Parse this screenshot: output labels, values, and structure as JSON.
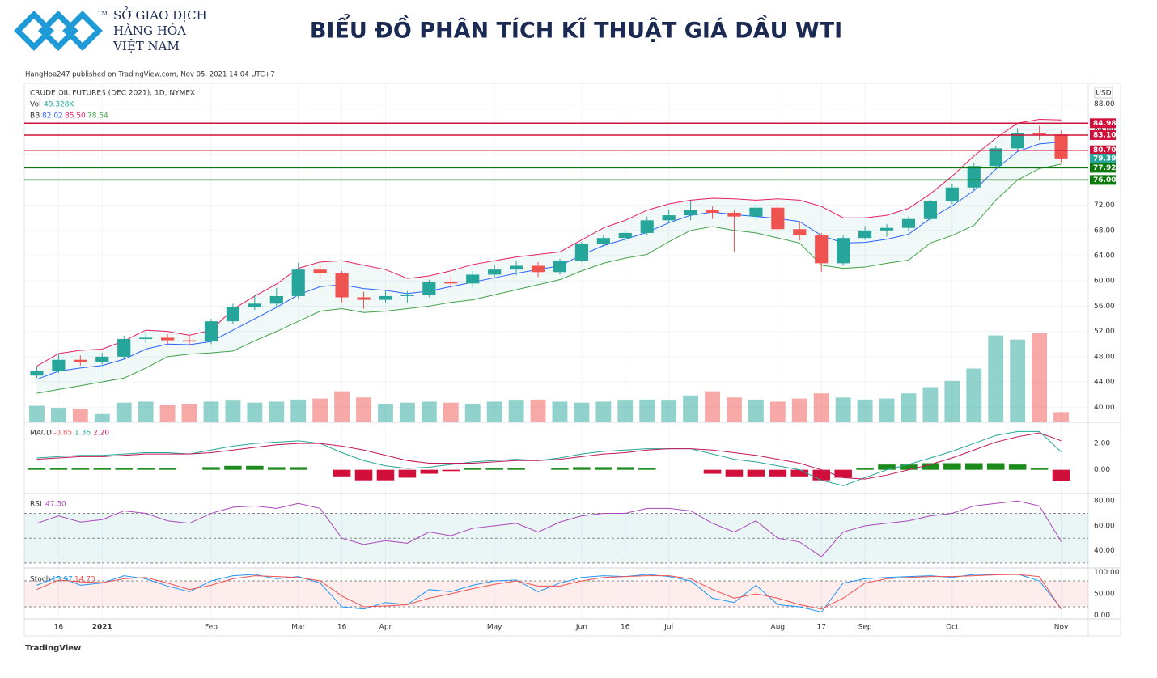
{
  "header": {
    "logo_lines": [
      "SỞ GIAO DỊCH",
      "HÀNG HÓA",
      "VIỆT NAM"
    ],
    "logo_mark": "TM",
    "title": "BIỂU ĐỒ PHÂN TÍCH KĨ THUẬT GIÁ DẦU WTI"
  },
  "attribution": "HangHoa247 published on TradingView.com, Nov 05, 2021 14:04 UTC+7",
  "footer": "TradingView",
  "chart_data": {
    "type": "candlestick",
    "title": "CRUDE OIL FUTURES (DEC 2021), 1D, NYMEX",
    "currency": "USD",
    "categories": [
      null,
      "16",
      null,
      "2021",
      null,
      null,
      null,
      null,
      "Feb",
      null,
      null,
      null,
      "Mar",
      null,
      "16",
      null,
      "Apr",
      null,
      null,
      null,
      null,
      "May",
      null,
      null,
      null,
      "Jun",
      null,
      "16",
      null,
      "Jul",
      null,
      null,
      null,
      null,
      "Aug",
      null,
      "17",
      null,
      "Sep",
      null,
      null,
      null,
      "Oct",
      null,
      null,
      null,
      null,
      "Nov"
    ],
    "open": [
      45.0,
      45.8,
      47.5,
      47.2,
      48.0,
      50.8,
      51.0,
      50.6,
      50.4,
      53.6,
      55.8,
      56.4,
      57.6,
      61.8,
      61.2,
      57.4,
      57.0,
      57.6,
      57.8,
      59.8,
      59.6,
      61.0,
      61.8,
      62.4,
      61.4,
      63.2,
      65.8,
      66.8,
      67.6,
      69.6,
      70.4,
      71.2,
      70.8,
      70.2,
      71.6,
      68.2,
      67.2,
      62.8,
      66.8,
      68.0,
      68.4,
      69.8,
      72.6,
      74.8,
      78.2,
      81.0,
      83.4,
      83.2
    ],
    "high": [
      46.3,
      48.4,
      48.2,
      48.6,
      51.3,
      51.8,
      51.6,
      51.3,
      54.0,
      56.4,
      57.8,
      58.9,
      62.9,
      62.5,
      61.6,
      58.3,
      58.4,
      58.4,
      60.2,
      60.7,
      61.6,
      62.6,
      63.2,
      63.0,
      63.5,
      66.2,
      67.2,
      68.0,
      70.2,
      71.3,
      72.6,
      71.8,
      71.3,
      72.3,
      71.9,
      69.5,
      67.6,
      67.2,
      68.7,
      69.0,
      70.2,
      72.9,
      75.4,
      78.7,
      81.4,
      84.2,
      84.6,
      83.8
    ],
    "low": [
      44.6,
      45.4,
      46.6,
      46.8,
      47.6,
      50.2,
      50.0,
      49.7,
      50.0,
      53.2,
      55.4,
      55.8,
      57.2,
      60.3,
      56.6,
      55.6,
      56.5,
      56.6,
      57.4,
      58.8,
      59.0,
      60.6,
      60.9,
      60.6,
      61.0,
      63.0,
      65.4,
      66.3,
      67.2,
      69.2,
      69.6,
      69.8,
      64.6,
      69.6,
      67.8,
      66.4,
      61.4,
      62.4,
      66.5,
      67.0,
      68.0,
      69.5,
      72.2,
      74.3,
      77.9,
      80.6,
      82.3,
      78.8
    ],
    "close": [
      45.8,
      47.5,
      47.2,
      48.0,
      50.8,
      51.0,
      50.6,
      50.4,
      53.6,
      55.8,
      56.4,
      57.6,
      61.8,
      61.2,
      57.4,
      57.0,
      57.6,
      57.8,
      59.8,
      59.6,
      61.0,
      61.8,
      62.4,
      61.4,
      63.2,
      65.8,
      66.8,
      67.6,
      69.6,
      70.4,
      71.2,
      70.8,
      70.2,
      71.6,
      68.2,
      67.2,
      62.8,
      66.8,
      68.0,
      68.4,
      69.8,
      72.6,
      74.8,
      78.2,
      81.0,
      83.4,
      83.2,
      79.4
    ],
    "up_color": "#26a69a",
    "down_color": "#ef5350",
    "ylim": [
      37.6,
      91.3
    ],
    "yticks": [
      {
        "value": 88,
        "label": "88.00"
      },
      {
        "value": 84,
        "label": "84.00"
      },
      {
        "value": 80,
        "label": "80.00"
      },
      {
        "value": 76,
        "label": "76.00"
      },
      {
        "value": 72,
        "label": "72.00"
      },
      {
        "value": 68,
        "label": "68.00"
      },
      {
        "value": 64,
        "label": "64.00"
      },
      {
        "value": 60,
        "label": "60.00"
      },
      {
        "value": 56,
        "label": "56.00"
      },
      {
        "value": 52,
        "label": "52.00"
      },
      {
        "value": 48,
        "label": "48.00"
      },
      {
        "value": 44,
        "label": "44.00"
      },
      {
        "value": 40,
        "label": "40.00"
      }
    ],
    "grid": true,
    "last_price": {
      "value": 79.39,
      "label": "79.39",
      "color": "#26a69a"
    },
    "levels": [
      {
        "value": 84.98,
        "label": "84.98",
        "color": "#d0103a"
      },
      {
        "value": 83.1,
        "label": "83.10",
        "color": "#d0103a"
      },
      {
        "value": 80.7,
        "label": "80.70",
        "color": "#d0103a"
      },
      {
        "value": 77.92,
        "label": "77.92",
        "color": "#0b7a0b"
      },
      {
        "value": 76.0,
        "label": "76.00",
        "color": "#0b7a0b"
      }
    ],
    "bollinger": {
      "name": "BB",
      "legend": [
        "82.02",
        "85.50",
        "78.54"
      ],
      "upper": [
        46.5,
        48.5,
        49.0,
        49.2,
        50.5,
        52.2,
        52.0,
        51.4,
        52.2,
        55.5,
        57.6,
        59.5,
        62.0,
        63.0,
        63.2,
        62.5,
        61.8,
        60.4,
        60.8,
        61.6,
        62.6,
        63.2,
        63.8,
        64.2,
        64.6,
        66.5,
        68.4,
        69.6,
        71.2,
        72.2,
        72.8,
        73.1,
        73.0,
        72.8,
        73.0,
        72.8,
        71.8,
        70.0,
        70.0,
        70.4,
        71.5,
        73.8,
        76.6,
        79.8,
        82.6,
        85.0,
        85.6,
        85.5
      ],
      "middle": [
        44.4,
        45.7,
        46.2,
        46.6,
        47.6,
        49.2,
        50.0,
        49.9,
        50.4,
        52.2,
        54.0,
        55.8,
        57.8,
        59.1,
        59.4,
        58.8,
        58.5,
        58.0,
        58.4,
        59.1,
        59.8,
        60.5,
        61.2,
        61.8,
        62.4,
        64.1,
        65.6,
        66.6,
        67.7,
        69.2,
        70.4,
        70.9,
        70.5,
        70.2,
        69.9,
        69.4,
        67.2,
        66.0,
        66.1,
        66.6,
        67.4,
        69.9,
        71.9,
        74.3,
        77.7,
        80.5,
        81.7,
        82.0
      ],
      "lower": [
        42.2,
        42.8,
        43.4,
        44.0,
        44.6,
        46.2,
        48.0,
        48.4,
        48.6,
        48.9,
        50.5,
        52.0,
        53.6,
        55.2,
        55.6,
        55.0,
        55.2,
        55.6,
        56.0,
        56.6,
        57.0,
        57.8,
        58.6,
        59.4,
        60.2,
        61.6,
        62.8,
        63.6,
        64.2,
        66.2,
        68.0,
        68.6,
        68.0,
        67.6,
        66.8,
        66.0,
        62.5,
        62.0,
        62.2,
        62.8,
        63.3,
        66.0,
        67.2,
        68.8,
        72.8,
        76.0,
        77.8,
        78.5
      ]
    },
    "volume": {
      "name": "Vol",
      "legend": "49.328K",
      "values": [
        80,
        70,
        65,
        40,
        95,
        100,
        85,
        90,
        100,
        105,
        95,
        100,
        110,
        115,
        150,
        120,
        90,
        95,
        100,
        95,
        90,
        100,
        105,
        110,
        100,
        95,
        100,
        105,
        110,
        105,
        130,
        150,
        120,
        110,
        100,
        115,
        140,
        120,
        110,
        115,
        140,
        170,
        200,
        260,
        420,
        400,
        430,
        49.328
      ]
    },
    "macd": {
      "name": "MACD",
      "legend": [
        "-0.85",
        "1.36",
        "2.20"
      ],
      "histogram": [
        0.1,
        0.1,
        0.1,
        0.1,
        0.1,
        0.1,
        0.1,
        0.0,
        0.2,
        0.3,
        0.3,
        0.2,
        0.2,
        0.0,
        -0.5,
        -0.8,
        -0.8,
        -0.6,
        -0.3,
        -0.1,
        0.1,
        0.1,
        0.1,
        0.0,
        0.1,
        0.2,
        0.2,
        0.2,
        0.1,
        0.0,
        0.0,
        -0.3,
        -0.5,
        -0.5,
        -0.5,
        -0.5,
        -0.8,
        -0.6,
        0.1,
        0.4,
        0.4,
        0.5,
        0.5,
        0.5,
        0.5,
        0.4,
        0.1,
        -0.85
      ],
      "macd": [
        0.9,
        1.0,
        1.1,
        1.1,
        1.2,
        1.3,
        1.3,
        1.2,
        1.5,
        1.8,
        2.0,
        2.1,
        2.2,
        2.0,
        1.3,
        0.7,
        0.3,
        0.1,
        0.2,
        0.4,
        0.6,
        0.7,
        0.8,
        0.7,
        0.9,
        1.2,
        1.4,
        1.5,
        1.6,
        1.6,
        1.6,
        1.2,
        0.8,
        0.6,
        0.3,
        0.0,
        -0.8,
        -1.2,
        -0.6,
        0.0,
        0.4,
        0.9,
        1.4,
        2.0,
        2.6,
        2.9,
        2.9,
        1.36
      ],
      "signal": [
        0.8,
        0.9,
        1.0,
        1.0,
        1.1,
        1.2,
        1.2,
        1.2,
        1.3,
        1.5,
        1.7,
        1.9,
        2.0,
        2.0,
        1.8,
        1.5,
        1.1,
        0.7,
        0.5,
        0.5,
        0.5,
        0.6,
        0.7,
        0.7,
        0.8,
        1.0,
        1.2,
        1.3,
        1.5,
        1.6,
        1.6,
        1.5,
        1.3,
        1.1,
        0.8,
        0.5,
        0.0,
        -0.6,
        -0.7,
        -0.4,
        0.0,
        0.4,
        0.9,
        1.5,
        2.1,
        2.5,
        2.8,
        2.2
      ],
      "ylim": [
        -1.8,
        3.6
      ],
      "yticks": [
        {
          "value": 2,
          "label": "2.00"
        },
        {
          "value": 0,
          "label": "0.00"
        }
      ]
    },
    "rsi": {
      "name": "RSI",
      "legend": "47.30",
      "values": [
        62,
        68,
        63,
        65,
        72,
        70,
        64,
        62,
        70,
        75,
        76,
        74,
        78,
        74,
        50,
        45,
        48,
        46,
        55,
        52,
        58,
        60,
        62,
        55,
        63,
        68,
        70,
        70,
        74,
        74,
        72,
        62,
        55,
        64,
        50,
        47,
        35,
        55,
        60,
        62,
        64,
        68,
        70,
        76,
        78,
        80,
        76,
        47.3
      ],
      "ylim": [
        26,
        86
      ],
      "yticks": [
        {
          "value": 80,
          "label": "80.00"
        },
        {
          "value": 60,
          "label": "60.00"
        },
        {
          "value": 40,
          "label": "40.00"
        }
      ],
      "bands": [
        70,
        50,
        30
      ]
    },
    "stoch": {
      "name": "Stoch",
      "legend": [
        "15.97",
        "14.73"
      ],
      "k": [
        70,
        90,
        70,
        75,
        92,
        85,
        68,
        55,
        80,
        92,
        95,
        85,
        90,
        75,
        20,
        15,
        30,
        25,
        60,
        55,
        70,
        80,
        82,
        55,
        75,
        88,
        92,
        90,
        95,
        90,
        80,
        40,
        30,
        70,
        25,
        20,
        8,
        75,
        85,
        88,
        90,
        92,
        88,
        95,
        95,
        96,
        80,
        15.97
      ],
      "d": [
        60,
        82,
        78,
        76,
        85,
        88,
        75,
        60,
        70,
        85,
        92,
        90,
        88,
        80,
        45,
        20,
        22,
        25,
        40,
        50,
        62,
        72,
        80,
        68,
        68,
        80,
        88,
        90,
        92,
        92,
        85,
        60,
        40,
        50,
        40,
        25,
        15,
        40,
        75,
        85,
        88,
        90,
        90,
        92,
        94,
        95,
        90,
        14.73
      ],
      "ylim": [
        -8,
        110
      ],
      "yticks": [
        {
          "value": 100,
          "label": "100.00"
        },
        {
          "value": 50,
          "label": "50.00"
        },
        {
          "value": 0,
          "label": "0.00"
        }
      ],
      "bands": [
        80,
        20
      ]
    }
  }
}
